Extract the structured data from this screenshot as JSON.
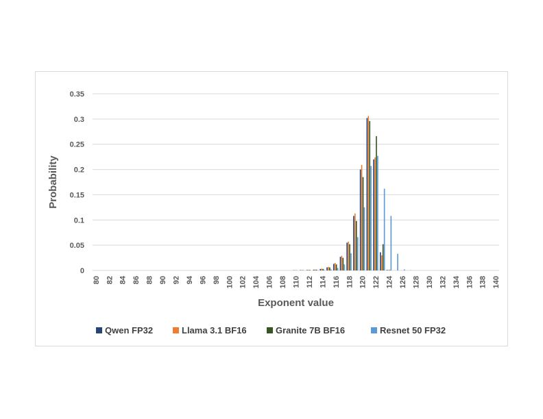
{
  "chart_data": {
    "type": "bar",
    "xlabel": "Exponent value",
    "ylabel": "Probability",
    "ylim": [
      0,
      0.35
    ],
    "y_ticks": [
      "0",
      "0.05",
      "0.1",
      "0.15",
      "0.2",
      "0.25",
      "0.3",
      "0.35"
    ],
    "y_tick_values": [
      0,
      0.05,
      0.1,
      0.15,
      0.2,
      0.25,
      0.3,
      0.35
    ],
    "categories": [
      80,
      81,
      82,
      83,
      84,
      85,
      86,
      87,
      88,
      89,
      90,
      91,
      92,
      93,
      94,
      95,
      96,
      97,
      98,
      99,
      100,
      101,
      102,
      103,
      104,
      105,
      106,
      107,
      108,
      109,
      110,
      111,
      112,
      113,
      114,
      115,
      116,
      117,
      118,
      119,
      120,
      121,
      122,
      123,
      124,
      125,
      126,
      127,
      128,
      129,
      130,
      131,
      132,
      133,
      134,
      135,
      136,
      137,
      138,
      139,
      140
    ],
    "x_tick_labels": [
      "80",
      "82",
      "84",
      "86",
      "88",
      "90",
      "92",
      "94",
      "96",
      "98",
      "100",
      "102",
      "104",
      "106",
      "108",
      "110",
      "112",
      "114",
      "116",
      "118",
      "120",
      "122",
      "124",
      "126",
      "128",
      "130",
      "132",
      "134",
      "136",
      "138",
      "140"
    ],
    "grid": "horizontal",
    "legend_position": "bottom",
    "series": [
      {
        "name": "Qwen FP32",
        "color": "#264478",
        "points": {
          "110": 0.0005,
          "111": 0.0007,
          "112": 0.001,
          "113": 0.0015,
          "114": 0.003,
          "115": 0.006,
          "116": 0.013,
          "117": 0.027,
          "118": 0.055,
          "119": 0.108,
          "120": 0.2,
          "121": 0.302,
          "122": 0.22,
          "123": 0.036,
          "124": 0.001
        }
      },
      {
        "name": "Llama 3.1 BF16",
        "color": "#ED7D31",
        "points": {
          "110": 0.0005,
          "111": 0.0008,
          "112": 0.0012,
          "113": 0.0017,
          "114": 0.0035,
          "115": 0.007,
          "116": 0.015,
          "117": 0.029,
          "118": 0.057,
          "119": 0.113,
          "120": 0.209,
          "121": 0.306,
          "122": 0.224,
          "123": 0.03,
          "124": 0.001
        }
      },
      {
        "name": "Granite 7B BF16",
        "color": "#375623",
        "points": {
          "110": 0.0004,
          "111": 0.0006,
          "112": 0.001,
          "113": 0.0015,
          "114": 0.003,
          "115": 0.006,
          "116": 0.012,
          "117": 0.025,
          "118": 0.052,
          "119": 0.098,
          "120": 0.185,
          "121": 0.296,
          "122": 0.266,
          "123": 0.052,
          "124": 0.001
        }
      },
      {
        "name": "Resnet 50 FP32",
        "color": "#5B9BD5",
        "points": {
          "113": 0.0005,
          "114": 0.001,
          "115": 0.002,
          "116": 0.005,
          "117": 0.012,
          "118": 0.034,
          "119": 0.066,
          "120": 0.125,
          "121": 0.207,
          "122": 0.227,
          "123": 0.162,
          "124": 0.108,
          "125": 0.033,
          "126": 0.002,
          "127": 0.0005
        }
      }
    ]
  }
}
